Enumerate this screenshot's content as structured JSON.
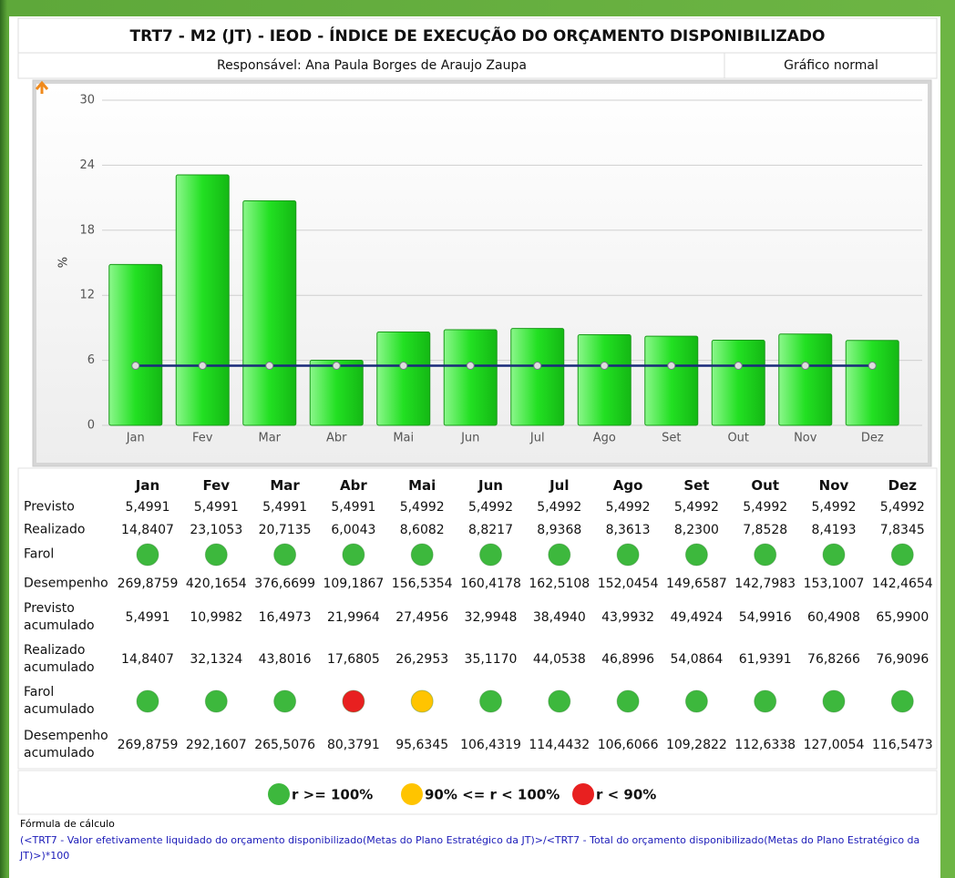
{
  "header": {
    "title": "TRT7 - M2 (JT) - IEOD - ÍNDICE DE EXECUÇÃO DO ORÇAMENTO DISPONIBILIZADO",
    "responsible": "Responsável: Ana Paula Borges de Araujo Zaupa",
    "view": "Gráfico normal"
  },
  "chart_data": {
    "type": "bar",
    "ylabel": "%",
    "categories": [
      "Jan",
      "Fev",
      "Mar",
      "Abr",
      "Mai",
      "Jun",
      "Jul",
      "Ago",
      "Set",
      "Out",
      "Nov",
      "Dez"
    ],
    "series": [
      {
        "type": "bar",
        "color": "#33e833",
        "values": [
          14.8407,
          23.1053,
          20.7135,
          6.0043,
          8.6082,
          8.8217,
          8.9368,
          8.3613,
          8.23,
          7.8528,
          8.4193,
          7.8345
        ]
      },
      {
        "type": "line",
        "color": "#1a2a7a",
        "values": [
          5.4991,
          5.4991,
          5.4991,
          5.4991,
          5.4992,
          5.4992,
          5.4992,
          5.4992,
          5.4992,
          5.4992,
          5.4992,
          5.4992
        ]
      }
    ],
    "ylim": [
      0,
      30
    ],
    "yticks": [
      0,
      6,
      12,
      18,
      24,
      30
    ],
    "grid": true
  },
  "table": {
    "columns": [
      "Jan",
      "Fev",
      "Mar",
      "Abr",
      "Mai",
      "Jun",
      "Jul",
      "Ago",
      "Set",
      "Out",
      "Nov",
      "Dez"
    ],
    "rows": [
      {
        "label": "Previsto",
        "cells": [
          "5,4991",
          "5,4991",
          "5,4991",
          "5,4991",
          "5,4992",
          "5,4992",
          "5,4992",
          "5,4992",
          "5,4992",
          "5,4992",
          "5,4992",
          "5,4992"
        ]
      },
      {
        "label": "Realizado",
        "cells": [
          "14,8407",
          "23,1053",
          "20,7135",
          "6,0043",
          "8,6082",
          "8,8217",
          "8,9368",
          "8,3613",
          "8,2300",
          "7,8528",
          "8,4193",
          "7,8345"
        ]
      },
      {
        "label": "Farol",
        "lights": [
          "#3db83d",
          "#3db83d",
          "#3db83d",
          "#3db83d",
          "#3db83d",
          "#3db83d",
          "#3db83d",
          "#3db83d",
          "#3db83d",
          "#3db83d",
          "#3db83d",
          "#3db83d"
        ]
      },
      {
        "label": "Desempenho",
        "cells": [
          "269,8759",
          "420,1654",
          "376,6699",
          "109,1867",
          "156,5354",
          "160,4178",
          "162,5108",
          "152,0454",
          "149,6587",
          "142,7983",
          "153,1007",
          "142,4654"
        ]
      },
      {
        "label": "Previsto acumulado",
        "cells": [
          "5,4991",
          "10,9982",
          "16,4973",
          "21,9964",
          "27,4956",
          "32,9948",
          "38,4940",
          "43,9932",
          "49,4924",
          "54,9916",
          "60,4908",
          "65,9900"
        ]
      },
      {
        "label": "Realizado acumulado",
        "cells": [
          "14,8407",
          "32,1324",
          "43,8016",
          "17,6805",
          "26,2953",
          "35,1170",
          "44,0538",
          "46,8996",
          "54,0864",
          "61,9391",
          "76,8266",
          "76,9096"
        ]
      },
      {
        "label": "Farol acumulado",
        "lights": [
          "#3db83d",
          "#3db83d",
          "#3db83d",
          "#e82020",
          "#ffc400",
          "#3db83d",
          "#3db83d",
          "#3db83d",
          "#3db83d",
          "#3db83d",
          "#3db83d",
          "#3db83d"
        ]
      },
      {
        "label": "Desempenho acumulado",
        "cells": [
          "269,8759",
          "292,1607",
          "265,5076",
          "80,3791",
          "95,6345",
          "106,4319",
          "114,4432",
          "106,6066",
          "109,2822",
          "112,6338",
          "127,0054",
          "116,5473"
        ]
      }
    ]
  },
  "legend": [
    {
      "label": "r >= 100%",
      "color": "#3db83d"
    },
    {
      "label": "90% <= r < 100%",
      "color": "#ffc400"
    },
    {
      "label": "r < 90%",
      "color": "#e82020"
    }
  ],
  "formula": {
    "label": "Fórmula de cálculo",
    "text": "(<TRT7 - Valor efetivamente liquidado do orçamento disponibilizado(Metas do Plano Estratégico da JT)>/<TRT7 - Total do orçamento disponibilizado(Metas do Plano Estratégico da JT)>)*100"
  }
}
